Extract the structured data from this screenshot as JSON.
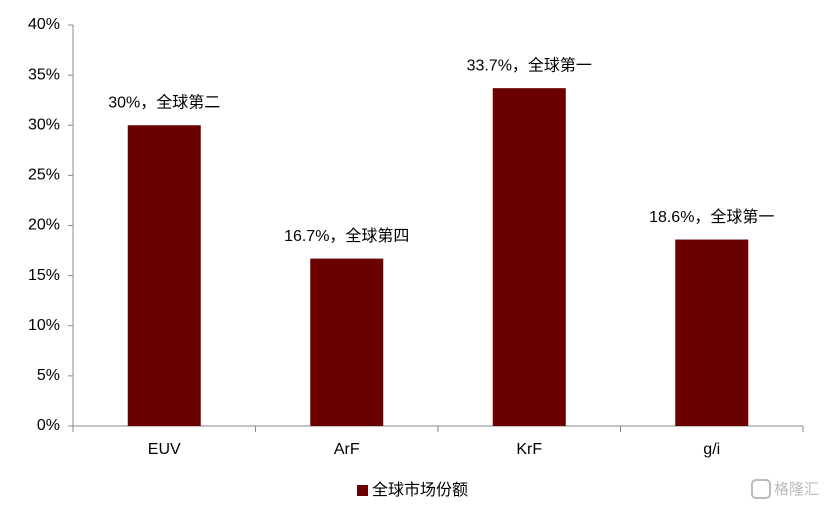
{
  "chart_data": {
    "type": "bar",
    "categories": [
      "EUV",
      "ArF",
      "KrF",
      "g/i"
    ],
    "series": [
      {
        "name": "全球市场份额",
        "color": "#6b0000",
        "values": [
          30,
          16.7,
          33.7,
          18.6
        ],
        "value_labels": [
          "30%，全球第二",
          "16.7%，全球第四",
          "33.7%，全球第一",
          "18.6%，全球第一"
        ]
      }
    ],
    "ylim": [
      0,
      40
    ],
    "yticks": [
      {
        "value": 0,
        "label": "0%"
      },
      {
        "value": 5,
        "label": "5%"
      },
      {
        "value": 10,
        "label": "10%"
      },
      {
        "value": 15,
        "label": "15%"
      },
      {
        "value": 20,
        "label": "20%"
      },
      {
        "value": 25,
        "label": "25%"
      },
      {
        "value": 30,
        "label": "30%"
      },
      {
        "value": 35,
        "label": "35%"
      },
      {
        "value": 40,
        "label": "40%"
      }
    ],
    "grid": false,
    "legend": "bottom",
    "watermark": "格隆汇"
  }
}
